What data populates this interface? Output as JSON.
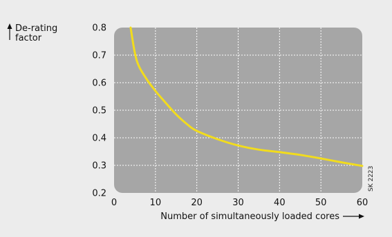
{
  "colors": {
    "background": "#ececec",
    "plot_area": "#a6a6a6",
    "grid": "#ffffff",
    "curve": "#f2dc1d",
    "text": "#111111"
  },
  "figure_code": "SK 2223",
  "chart_data": {
    "type": "line",
    "title": "",
    "ylabel": "De-rating factor",
    "xlabel": "Number of simultaneously loaded cores",
    "xlim": [
      0,
      60
    ],
    "ylim": [
      0.2,
      0.8
    ],
    "x_ticks": [
      0,
      10,
      20,
      30,
      40,
      50,
      60
    ],
    "y_ticks": [
      0.2,
      0.3,
      0.4,
      0.5,
      0.6,
      0.7,
      0.8
    ],
    "x_tick_labels": [
      "0",
      "10",
      "20",
      "30",
      "40",
      "50",
      "60"
    ],
    "y_tick_labels": [
      "0.2",
      "0.3",
      "0.4",
      "0.5",
      "0.6",
      "0.7",
      "0.8"
    ],
    "grid": true,
    "series": [
      {
        "x": [
          4,
          5,
          6,
          8,
          10,
          12,
          15,
          18,
          20,
          25,
          30,
          35,
          40,
          45,
          50,
          55,
          60
        ],
        "y": [
          0.8,
          0.71,
          0.66,
          0.61,
          0.57,
          0.535,
          0.485,
          0.445,
          0.425,
          0.395,
          0.372,
          0.357,
          0.348,
          0.338,
          0.325,
          0.311,
          0.298
        ]
      }
    ]
  }
}
